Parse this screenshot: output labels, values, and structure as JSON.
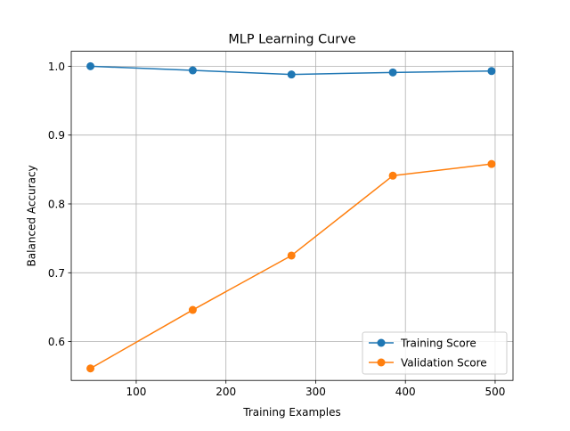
{
  "chart_data": {
    "type": "line",
    "title": "MLP Learning Curve",
    "xlabel": "Training Examples",
    "ylabel": "Balanced Accuracy",
    "xlim": [
      27.6,
      519.9
    ],
    "ylim": [
      0.5436,
      1.0217
    ],
    "xticks": [
      100,
      200,
      300,
      400,
      500
    ],
    "yticks": [
      0.6,
      0.7,
      0.8,
      0.9,
      1.0
    ],
    "xtick_labels": [
      "100",
      "200",
      "300",
      "400",
      "500"
    ],
    "ytick_labels": [
      "0.6",
      "0.7",
      "0.8",
      "0.9",
      "1.0"
    ],
    "grid": true,
    "legend_position": "lower right",
    "series": [
      {
        "name": "Training Score",
        "color": "#1f77b4",
        "marker": "circle",
        "x": [
          49,
          163,
          273,
          386,
          496
        ],
        "y": [
          1.0,
          0.994,
          0.988,
          0.991,
          0.993
        ]
      },
      {
        "name": "Validation Score",
        "color": "#ff7f0e",
        "marker": "circle",
        "x": [
          49,
          163,
          273,
          386,
          496
        ],
        "y": [
          0.561,
          0.646,
          0.725,
          0.841,
          0.858
        ]
      }
    ]
  }
}
